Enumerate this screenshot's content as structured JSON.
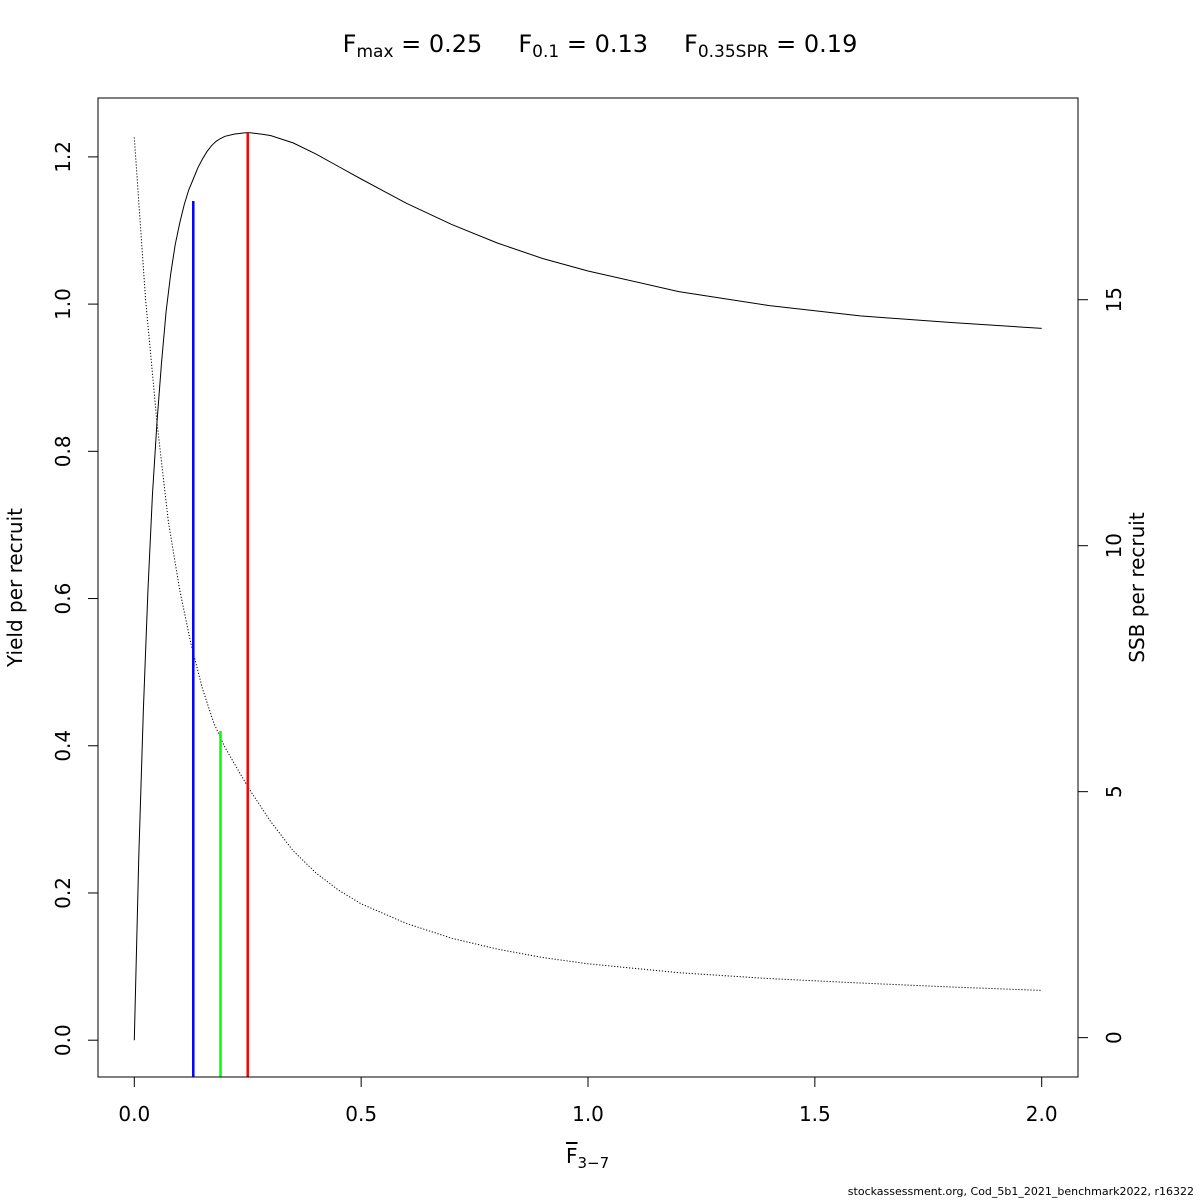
{
  "title": {
    "fmax": {
      "symbol": "F",
      "subscript": "max",
      "eq": " = ",
      "value": "0.25"
    },
    "f01": {
      "symbol": "F",
      "subscript": "0.1",
      "eq": " = ",
      "value": "0.13"
    },
    "fspr": {
      "symbol": "F",
      "subscript": "0.35SPR",
      "eq": " = ",
      "value": "0.19"
    }
  },
  "footer": "stockassessment.org, Cod_5b1_2021_benchmark2022, r16322",
  "chart_data": {
    "type": "line",
    "xlabel": {
      "symbol": "F",
      "subscript": "3−7"
    },
    "ylabel": "Yield per recruit",
    "y2label": "SSB per recruit",
    "xlim": [
      -0.08,
      2.08
    ],
    "ylim": [
      -0.05,
      1.28
    ],
    "y2lim": [
      -0.8,
      19.1
    ],
    "xticks": [
      "0.0",
      "0.5",
      "1.0",
      "1.5",
      "2.0"
    ],
    "yticks": [
      "0.0",
      "0.2",
      "0.4",
      "0.6",
      "0.8",
      "1.0",
      "1.2"
    ],
    "y2ticks": [
      "0",
      "5",
      "10",
      "15"
    ],
    "grid": false,
    "legend": "none",
    "series": [
      {
        "axis": "left",
        "style": "solid",
        "color": "#000000",
        "x": [
          0,
          0.01,
          0.02,
          0.03,
          0.04,
          0.05,
          0.06,
          0.07,
          0.08,
          0.09,
          0.1,
          0.11,
          0.12,
          0.13,
          0.14,
          0.15,
          0.16,
          0.17,
          0.18,
          0.19,
          0.2,
          0.22,
          0.24,
          0.25,
          0.26,
          0.28,
          0.3,
          0.35,
          0.4,
          0.45,
          0.5,
          0.6,
          0.7,
          0.8,
          0.9,
          1.0,
          1.2,
          1.4,
          1.6,
          1.8,
          2.0
        ],
        "y": [
          0.0,
          0.25,
          0.45,
          0.61,
          0.74,
          0.84,
          0.92,
          0.99,
          1.04,
          1.08,
          1.11,
          1.135,
          1.155,
          1.17,
          1.185,
          1.197,
          1.207,
          1.215,
          1.221,
          1.225,
          1.228,
          1.231,
          1.2325,
          1.233,
          1.2325,
          1.231,
          1.229,
          1.219,
          1.204,
          1.187,
          1.17,
          1.137,
          1.108,
          1.083,
          1.062,
          1.045,
          1.017,
          0.998,
          0.984,
          0.975,
          0.967
        ]
      },
      {
        "axis": "right",
        "style": "dotted",
        "color": "#000000",
        "x": [
          0,
          0.025,
          0.05,
          0.075,
          0.1,
          0.125,
          0.15,
          0.175,
          0.2,
          0.25,
          0.3,
          0.35,
          0.4,
          0.45,
          0.5,
          0.6,
          0.7,
          0.8,
          0.9,
          1.0,
          1.2,
          1.4,
          1.6,
          1.8,
          2.0
        ],
        "y": [
          18.3,
          15.0,
          12.5,
          10.5,
          9.1,
          8.0,
          7.1,
          6.4,
          5.9,
          5.1,
          4.4,
          3.8,
          3.35,
          3.0,
          2.72,
          2.32,
          2.02,
          1.8,
          1.63,
          1.5,
          1.32,
          1.2,
          1.11,
          1.03,
          0.96
        ]
      }
    ],
    "reference_lines": [
      {
        "name": "F0.1",
        "x": 0.13,
        "y_top": 1.14,
        "color": "#0000ff"
      },
      {
        "name": "F0.35SPR",
        "x": 0.19,
        "y_top": 0.42,
        "color": "#00ff00"
      },
      {
        "name": "Fmax",
        "x": 0.25,
        "y_top": 1.233,
        "color": "#ff0000"
      }
    ]
  }
}
